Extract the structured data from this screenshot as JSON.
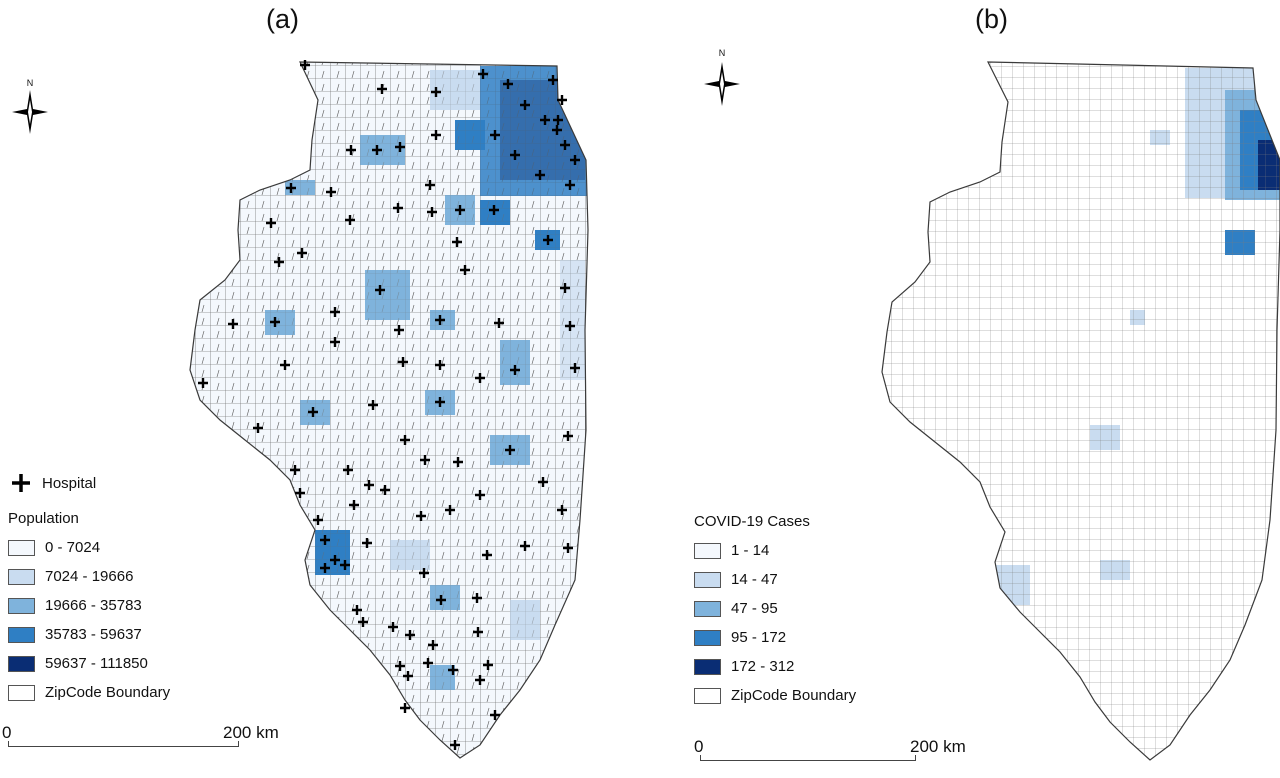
{
  "panel_a": {
    "label": "(a)",
    "north": "N",
    "hospital_legend": "Hospital",
    "legend_title": "Population",
    "legend": [
      {
        "label": "0 - 7024",
        "color": "#f4f8fd"
      },
      {
        "label": "7024 - 19666",
        "color": "#c9dcf0"
      },
      {
        "label": "19666 - 35783",
        "color": "#7fb3dc"
      },
      {
        "label": "35783 - 59637",
        "color": "#2f7fc4"
      },
      {
        "label": "59637 - 111850",
        "color": "#0a2d74"
      },
      {
        "label": "ZipCode Boundary",
        "color": "#ffffff"
      }
    ],
    "scale": {
      "start": "0",
      "end": "200 km"
    }
  },
  "panel_b": {
    "label": "(b)",
    "north": "N",
    "legend_title": "COVID-19 Cases",
    "legend": [
      {
        "label": "1 - 14",
        "color": "#f4f8fd"
      },
      {
        "label": "14 - 47",
        "color": "#c9dcf0"
      },
      {
        "label": "47 - 95",
        "color": "#7fb3dc"
      },
      {
        "label": "95 - 172",
        "color": "#2f7fc4"
      },
      {
        "label": "172 - 312",
        "color": "#0a2d74"
      },
      {
        "label": "ZipCode Boundary",
        "color": "#ffffff"
      }
    ],
    "scale": {
      "start": "0",
      "end": "200 km"
    }
  },
  "colors": {
    "boundary": "#3a3a3a",
    "hospital": "#000000"
  }
}
